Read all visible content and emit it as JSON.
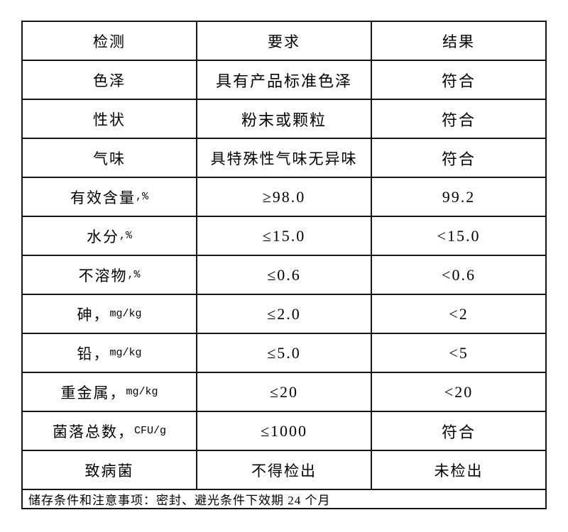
{
  "table": {
    "header": {
      "test": "检测",
      "requirement": "要求",
      "result": "结果"
    },
    "rows": [
      {
        "test": "色泽",
        "test_suffix": "",
        "requirement": "具有产品标准色泽",
        "result": "符合"
      },
      {
        "test": "性状",
        "test_suffix": "",
        "requirement": "粉末或颗粒",
        "result": "符合"
      },
      {
        "test": "气味",
        "test_suffix": "",
        "requirement": "具特殊性气味无异味",
        "result": "符合"
      },
      {
        "test": "有效含量",
        "test_suffix": ",%",
        "requirement": "≥98.0",
        "result": "99.2"
      },
      {
        "test": "水分",
        "test_suffix": ",%",
        "requirement": "≤15.0",
        "result": "<15.0"
      },
      {
        "test": "不溶物",
        "test_suffix": ",%",
        "requirement": "≤0.6",
        "result": "<0.6"
      },
      {
        "test": "砷，",
        "test_suffix": "mg/kg",
        "requirement": "≤2.0",
        "result": "<2"
      },
      {
        "test": "铅，",
        "test_suffix": "mg/kg",
        "requirement": "≤5.0",
        "result": "<5"
      },
      {
        "test": "重金属，",
        "test_suffix": "mg/kg",
        "requirement": "≤20",
        "result": "<20"
      },
      {
        "test": "菌落总数，",
        "test_suffix": "CFU/g",
        "requirement": "≤1000",
        "result": "符合"
      },
      {
        "test": "致病菌",
        "test_suffix": "",
        "requirement": "不得检出",
        "result": "未检出"
      }
    ],
    "footer": "储存条件和注意事项：密封、避光条件下效期 24 个月"
  }
}
